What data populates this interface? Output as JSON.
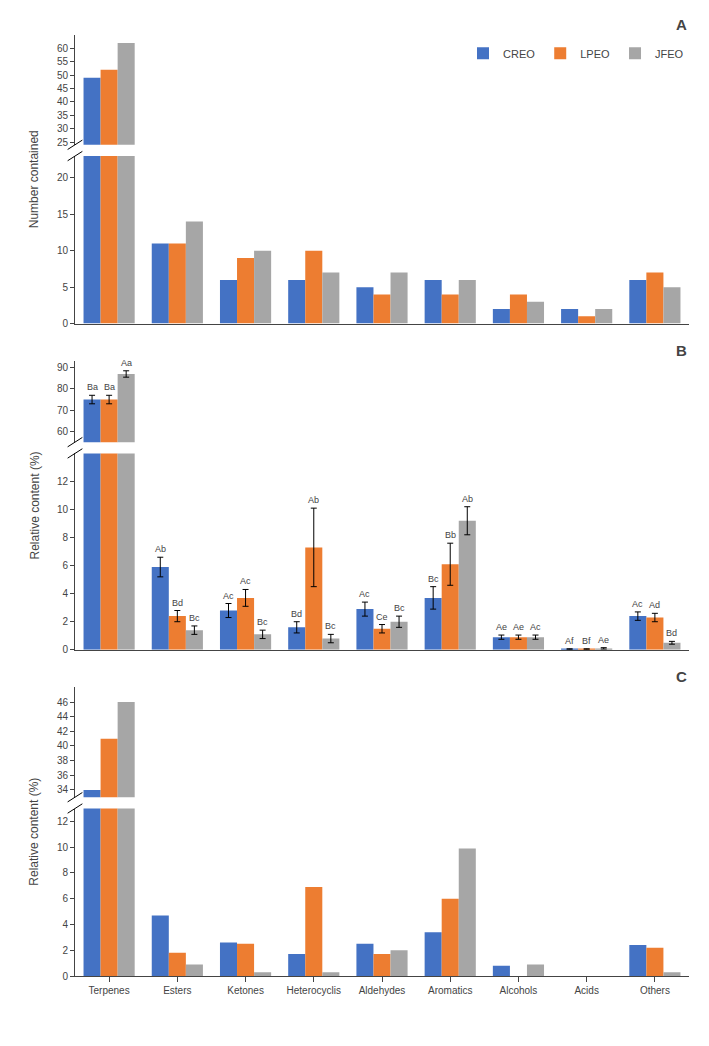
{
  "chart_data": [
    {
      "type": "bar",
      "title": "A",
      "ylabel": "Number contained",
      "categories": [
        "Terpenes",
        "Esters",
        "Ketones",
        "Heterocyclis",
        "Aldehydes",
        "Aromatics",
        "Alcohols",
        "Acids",
        "Others"
      ],
      "series": [
        {
          "name": "CREO",
          "color": "#4472C4",
          "values": [
            49,
            11,
            6,
            6,
            5,
            6,
            2,
            2,
            6
          ]
        },
        {
          "name": "LPEO",
          "color": "#ED7D31",
          "values": [
            52,
            11,
            9,
            10,
            4,
            4,
            4,
            1,
            7
          ]
        },
        {
          "name": "JFEO",
          "color": "#A6A6A6",
          "values": [
            62,
            14,
            10,
            7,
            7,
            6,
            3,
            2,
            5
          ]
        }
      ],
      "ylim": [
        [
          0,
          23
        ],
        [
          24,
          65
        ]
      ],
      "yticks": [
        [
          0,
          5,
          10,
          15,
          20
        ],
        [
          25,
          30,
          35,
          40,
          45,
          50,
          55,
          60
        ]
      ],
      "grid": false,
      "legend": "upper right",
      "tick_labels": "y"
    },
    {
      "type": "bar",
      "title": "B",
      "ylabel": "Relative content (%)",
      "categories": [
        "Terpenes",
        "Esters",
        "Ketones",
        "Heterocyclis",
        "Aldehydes",
        "Aromatics",
        "Alcohols",
        "Acids",
        "Others"
      ],
      "series": [
        {
          "name": "CREO",
          "color": "#4472C4",
          "values": [
            75.0,
            5.9,
            2.8,
            1.6,
            2.9,
            3.7,
            0.9,
            0.05,
            2.4
          ],
          "errors": [
            2.0,
            0.7,
            0.5,
            0.4,
            0.5,
            0.8,
            0.15,
            0.02,
            0.3
          ]
        },
        {
          "name": "LPEO",
          "color": "#ED7D31",
          "values": [
            75.0,
            2.4,
            3.7,
            7.3,
            1.5,
            6.1,
            0.9,
            0.05,
            2.3
          ],
          "errors": [
            2.0,
            0.4,
            0.6,
            2.8,
            0.3,
            1.5,
            0.15,
            0.02,
            0.3
          ]
        },
        {
          "name": "JFEO",
          "color": "#A6A6A6",
          "values": [
            87.0,
            1.4,
            1.1,
            0.8,
            2.0,
            9.2,
            0.9,
            0.1,
            0.5
          ],
          "errors": [
            1.5,
            0.3,
            0.3,
            0.3,
            0.4,
            1.0,
            0.15,
            0.05,
            0.1
          ]
        }
      ],
      "ylim": [
        [
          0,
          14
        ],
        [
          55,
          93
        ]
      ],
      "yticks": [
        [
          0,
          2,
          4,
          6,
          8,
          10,
          12
        ],
        [
          60,
          70,
          80,
          90
        ]
      ],
      "grid": false,
      "legend": false,
      "tick_labels": "y",
      "annotations": [
        {
          "text": "Aa",
          "category": "Terpenes",
          "series": "JFEO"
        },
        {
          "text": "Ba",
          "category": "Terpenes",
          "series": "CREO"
        },
        {
          "text": "Ba",
          "category": "Terpenes",
          "series": "LPEO"
        },
        {
          "text": "Ab",
          "category": "Esters",
          "series": "CREO"
        },
        {
          "text": "Bd",
          "category": "Esters",
          "series": "LPEO"
        },
        {
          "text": "Bc",
          "category": "Esters",
          "series": "JFEO"
        },
        {
          "text": "Ac",
          "category": "Ketones",
          "series": "CREO"
        },
        {
          "text": "Ac",
          "category": "Ketones",
          "series": "LPEO"
        },
        {
          "text": "Bc",
          "category": "Ketones",
          "series": "JFEO"
        },
        {
          "text": "Bd",
          "category": "Heterocyclis",
          "series": "CREO"
        },
        {
          "text": "Ab",
          "category": "Heterocyclis",
          "series": "LPEO"
        },
        {
          "text": "Bc",
          "category": "Heterocyclis",
          "series": "JFEO"
        },
        {
          "text": "Ac",
          "category": "Aldehydes",
          "series": "CREO"
        },
        {
          "text": "Ce",
          "category": "Aldehydes",
          "series": "LPEO"
        },
        {
          "text": "Bc",
          "category": "Aldehydes",
          "series": "JFEO"
        },
        {
          "text": "Bc",
          "category": "Aromatics",
          "series": "CREO"
        },
        {
          "text": "Bb",
          "category": "Aromatics",
          "series": "LPEO"
        },
        {
          "text": "Ab",
          "category": "Aromatics",
          "series": "JFEO"
        },
        {
          "text": "Ae",
          "category": "Alcohols",
          "series": "CREO"
        },
        {
          "text": "Ae",
          "category": "Alcohols",
          "series": "LPEO"
        },
        {
          "text": "Ac",
          "category": "Alcohols",
          "series": "JFEO"
        },
        {
          "text": "Af",
          "category": "Acids",
          "series": "CREO"
        },
        {
          "text": "Bf",
          "category": "Acids",
          "series": "LPEO"
        },
        {
          "text": "Ae",
          "category": "Acids",
          "series": "JFEO"
        },
        {
          "text": "Ac",
          "category": "Others",
          "series": "CREO"
        },
        {
          "text": "Ad",
          "category": "Others",
          "series": "LPEO"
        },
        {
          "text": "Bd",
          "category": "Others",
          "series": "JFEO"
        }
      ]
    },
    {
      "type": "bar",
      "title": "C",
      "ylabel": "Relative content (%)",
      "categories": [
        "Terpenes",
        "Esters",
        "Ketones",
        "Heterocyclis",
        "Aldehydes",
        "Aromatics",
        "Alcohols",
        "Acids",
        "Others"
      ],
      "series": [
        {
          "name": "CREO",
          "color": "#4472C4",
          "values": [
            34.0,
            4.7,
            2.6,
            1.7,
            2.5,
            3.4,
            0.8,
            0.0,
            2.4
          ]
        },
        {
          "name": "LPEO",
          "color": "#ED7D31",
          "values": [
            41.0,
            1.8,
            2.5,
            6.9,
            1.7,
            6.0,
            0.0,
            0.0,
            2.2
          ]
        },
        {
          "name": "JFEO",
          "color": "#A6A6A6",
          "values": [
            46.0,
            0.9,
            0.3,
            0.3,
            2.0,
            9.9,
            0.9,
            0.0,
            0.3
          ]
        }
      ],
      "ylim": [
        [
          0,
          13
        ],
        [
          33,
          48
        ]
      ],
      "yticks": [
        [
          0,
          2,
          4,
          6,
          8,
          10,
          12
        ],
        [
          34,
          36,
          38,
          40,
          42,
          44,
          46
        ]
      ],
      "grid": false,
      "legend": false
    }
  ]
}
